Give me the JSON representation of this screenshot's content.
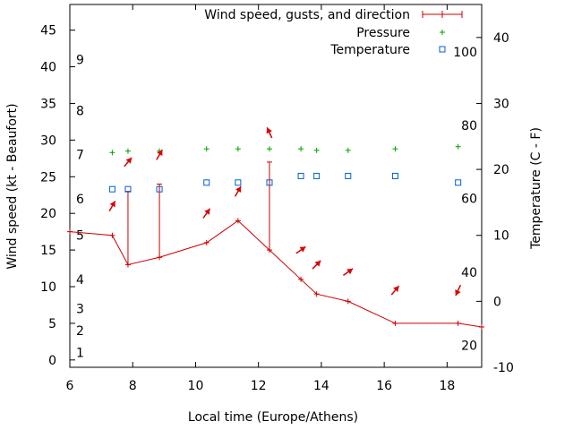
{
  "chart_data": {
    "type": "line",
    "xlabel": "Local time (Europe/Athens)",
    "ylabel_left": "Wind speed (kt - Beaufort)",
    "ylabel_right": "Temperature (C - F)",
    "xlim": [
      6,
      19.1
    ],
    "ylim_left": [
      -1,
      48.5
    ],
    "ylim_right": [
      -10,
      45
    ],
    "x_ticks": [
      6,
      8,
      10,
      12,
      14,
      16,
      18
    ],
    "y_ticks_left": [
      0,
      5,
      10,
      15,
      20,
      25,
      30,
      35,
      40,
      45
    ],
    "y_ticks_right": [
      -10,
      0,
      10,
      20,
      30,
      40
    ],
    "grid": false,
    "legend_position": "top-right",
    "beaufort_labels": [
      {
        "label": "1",
        "y": 1
      },
      {
        "label": "2",
        "y": 4
      },
      {
        "label": "3",
        "y": 7
      },
      {
        "label": "4",
        "y": 11
      },
      {
        "label": "5",
        "y": 17
      },
      {
        "label": "6",
        "y": 22
      },
      {
        "label": "7",
        "y": 28
      },
      {
        "label": "8",
        "y": 34
      },
      {
        "label": "9",
        "y": 41
      }
    ],
    "fahrenheit_labels": [
      {
        "label": "20",
        "y": -6.7
      },
      {
        "label": "40",
        "y": 4.4
      },
      {
        "label": "60",
        "y": 15.6
      },
      {
        "label": "80",
        "y": 26.7
      },
      {
        "label": "100",
        "y": 37.8
      }
    ],
    "series": [
      {
        "name": "Wind speed, gusts, and direction",
        "kind": "wind",
        "color": "#cc0000",
        "x": [
          6.0,
          7.35,
          7.85,
          8.85,
          10.35,
          11.35,
          12.35,
          13.35,
          13.85,
          14.85,
          16.35,
          18.35,
          19.1
        ],
        "y": [
          17.5,
          17.0,
          13.0,
          14.0,
          16.0,
          19.0,
          15.0,
          11.0,
          9.0,
          8.0,
          5.0,
          5.0,
          4.5
        ],
        "gusts": [
          {
            "x": 7.85,
            "y": 23.0
          },
          {
            "x": 8.85,
            "y": 24.0
          },
          {
            "x": 12.35,
            "y": 27.0
          }
        ]
      },
      {
        "name": "Pressure",
        "kind": "marker-plus",
        "color": "#00a000",
        "x": [
          7.35,
          7.85,
          8.85,
          10.35,
          11.35,
          12.35,
          13.35,
          13.85,
          14.85,
          16.35,
          18.35
        ],
        "y": [
          28.3,
          28.5,
          28.5,
          28.8,
          28.8,
          28.8,
          28.8,
          28.6,
          28.6,
          28.8,
          29.1
        ]
      },
      {
        "name": "Temperature",
        "kind": "marker-square",
        "color": "#0060d0",
        "axis": "right",
        "x": [
          7.35,
          7.85,
          8.85,
          10.35,
          11.35,
          12.35,
          13.35,
          13.85,
          14.85,
          16.35,
          18.35
        ],
        "y": [
          17.0,
          17.0,
          17.0,
          18.0,
          18.0,
          18.0,
          19.0,
          19.0,
          19.0,
          19.0,
          18.0
        ]
      }
    ],
    "wind_arrows": [
      {
        "x": 7.35,
        "y": 21.0,
        "angle": 30
      },
      {
        "x": 7.85,
        "y": 27.0,
        "angle": 40
      },
      {
        "x": 8.85,
        "y": 28.0,
        "angle": 30
      },
      {
        "x": 10.35,
        "y": 20.0,
        "angle": 35
      },
      {
        "x": 11.35,
        "y": 23.0,
        "angle": 30
      },
      {
        "x": 12.35,
        "y": 31.0,
        "angle": -25
      },
      {
        "x": 13.35,
        "y": 15.0,
        "angle": 55
      },
      {
        "x": 13.85,
        "y": 13.0,
        "angle": 45
      },
      {
        "x": 14.85,
        "y": 12.0,
        "angle": 55
      },
      {
        "x": 16.35,
        "y": 9.5,
        "angle": 40
      },
      {
        "x": 18.35,
        "y": 9.5,
        "angle": -155
      }
    ]
  }
}
